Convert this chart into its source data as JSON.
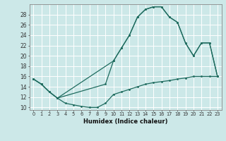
{
  "xlabel": "Humidex (Indice chaleur)",
  "bg_color": "#cce8e8",
  "line_color": "#1e6b5e",
  "grid_color": "#ffffff",
  "xlim": [
    -0.5,
    23.5
  ],
  "ylim": [
    9.5,
    30
  ],
  "xticks": [
    0,
    1,
    2,
    3,
    4,
    5,
    6,
    7,
    8,
    9,
    10,
    11,
    12,
    13,
    14,
    15,
    16,
    17,
    18,
    19,
    20,
    21,
    22,
    23
  ],
  "yticks": [
    10,
    12,
    14,
    16,
    18,
    20,
    22,
    24,
    26,
    28
  ],
  "line1_x": [
    0,
    1,
    2,
    3,
    4,
    5,
    6,
    7,
    8,
    9,
    10,
    11,
    12,
    13,
    14,
    15,
    16,
    17,
    18,
    19,
    20,
    21,
    22,
    23
  ],
  "line1_y": [
    15.5,
    14.5,
    13.0,
    11.8,
    10.8,
    10.5,
    10.2,
    10.0,
    10.0,
    10.8,
    12.5,
    13.0,
    13.5,
    14.0,
    14.5,
    14.8,
    15.0,
    15.2,
    15.5,
    15.7,
    16.0,
    16.0,
    16.0,
    16.0
  ],
  "line2_x": [
    0,
    1,
    2,
    3,
    10,
    11,
    12,
    13,
    14,
    15,
    16,
    17,
    18,
    19,
    20,
    21,
    22,
    23
  ],
  "line2_y": [
    15.5,
    14.5,
    13.0,
    11.8,
    19.0,
    21.5,
    24.0,
    27.5,
    29.0,
    29.5,
    29.5,
    27.5,
    26.5,
    22.5,
    20.0,
    22.5,
    22.5,
    16.0
  ],
  "line3_x": [
    0,
    1,
    2,
    3,
    9,
    10,
    11,
    12,
    13,
    14,
    15,
    16,
    17,
    18,
    19,
    20,
    21,
    22,
    23
  ],
  "line3_y": [
    15.5,
    14.5,
    13.0,
    11.8,
    14.5,
    19.0,
    21.5,
    24.0,
    27.5,
    29.0,
    29.5,
    29.5,
    27.5,
    26.5,
    22.5,
    20.0,
    22.5,
    22.5,
    16.0
  ]
}
